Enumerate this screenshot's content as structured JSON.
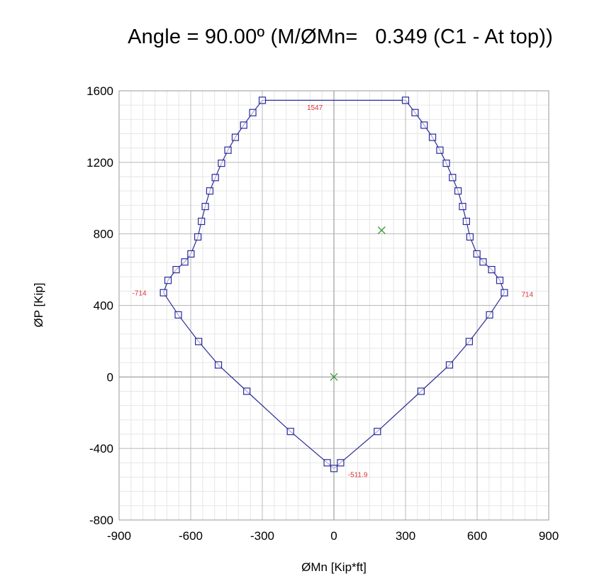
{
  "chart_data": {
    "type": "scatter",
    "title": "Angle = 90.00º (M/ØMn=   0.349 (C1 - At top))",
    "xlabel": "ØMn [Kip*ft]",
    "ylabel": "ØP [Kip]",
    "xlim": [
      -900,
      900
    ],
    "ylim": [
      -800,
      1600
    ],
    "xticks": [
      -900,
      -600,
      -300,
      0,
      300,
      600,
      900
    ],
    "yticks": [
      -800,
      -400,
      0,
      400,
      800,
      1200,
      1600
    ],
    "grid": true,
    "colors": {
      "curve": "#2b2b9b",
      "marker": "#2b2b9b",
      "cross": "#3a9a3a",
      "annotation": "#e0303a",
      "major_grid": "#b8b8b8",
      "minor_grid": "#e6e6e6",
      "zero_line": "#8c8c8c"
    },
    "series": [
      {
        "marker": "square",
        "points": [
          [
            -300,
            1547
          ],
          [
            300,
            1547
          ],
          [
            340,
            1478
          ],
          [
            378,
            1408
          ],
          [
            413,
            1340
          ],
          [
            444,
            1268
          ],
          [
            471,
            1195
          ],
          [
            497,
            1115
          ],
          [
            520,
            1040
          ],
          [
            539,
            953
          ],
          [
            555,
            870
          ],
          [
            570,
            783
          ],
          [
            599,
            688
          ],
          [
            625,
            643
          ],
          [
            661,
            600
          ],
          [
            695,
            540
          ],
          [
            714,
            471
          ],
          [
            652,
            347
          ],
          [
            567,
            198
          ],
          [
            484,
            67
          ],
          [
            365,
            -80
          ],
          [
            182,
            -305
          ],
          [
            28,
            -480
          ],
          [
            0,
            -511.9
          ],
          [
            -28,
            -480
          ],
          [
            -182,
            -305
          ],
          [
            -365,
            -80
          ],
          [
            -484,
            67
          ],
          [
            -567,
            198
          ],
          [
            -652,
            347
          ],
          [
            -714,
            471
          ],
          [
            -695,
            540
          ],
          [
            -661,
            600
          ],
          [
            -625,
            643
          ],
          [
            -599,
            688
          ],
          [
            -570,
            783
          ],
          [
            -555,
            870
          ],
          [
            -539,
            953
          ],
          [
            -520,
            1040
          ],
          [
            -497,
            1115
          ],
          [
            -471,
            1195
          ],
          [
            -444,
            1268
          ],
          [
            -413,
            1340
          ],
          [
            -378,
            1408
          ],
          [
            -340,
            1478
          ]
        ]
      },
      {
        "marker": "cross",
        "points": [
          [
            0,
            0
          ],
          [
            200,
            820
          ]
        ]
      }
    ],
    "annotations": [
      {
        "text": "1547",
        "x": -80,
        "y": 1508
      },
      {
        "text": "714",
        "x": 810,
        "y": 464
      },
      {
        "text": "-714",
        "x": -815,
        "y": 472
      },
      {
        "text": "-511.9",
        "x": 100,
        "y": -545
      }
    ]
  }
}
